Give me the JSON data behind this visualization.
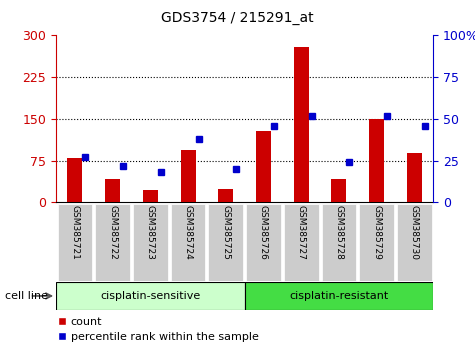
{
  "title": "GDS3754 / 215291_at",
  "samples": [
    "GSM385721",
    "GSM385722",
    "GSM385723",
    "GSM385724",
    "GSM385725",
    "GSM385726",
    "GSM385727",
    "GSM385728",
    "GSM385729",
    "GSM385730"
  ],
  "counts": [
    80,
    42,
    22,
    95,
    25,
    128,
    280,
    42,
    150,
    88
  ],
  "percentile_ranks": [
    27,
    22,
    18,
    38,
    20,
    46,
    52,
    24,
    52,
    46
  ],
  "group_labels": [
    "cisplatin-sensitive",
    "cisplatin-resistant"
  ],
  "group_sizes": [
    5,
    5
  ],
  "left_ylim": [
    0,
    300
  ],
  "right_ylim": [
    0,
    100
  ],
  "left_yticks": [
    0,
    75,
    150,
    225,
    300
  ],
  "right_yticks": [
    0,
    25,
    50,
    75,
    100
  ],
  "right_yticklabels": [
    "0",
    "25",
    "50",
    "75",
    "100%"
  ],
  "bar_color": "#cc0000",
  "dot_color": "#0000cc",
  "bg_color_sensitive": "#ccffcc",
  "bg_color_resistant": "#44dd44",
  "tick_bg": "#cccccc",
  "grid_color": "#000000",
  "legend_count_label": "count",
  "legend_pct_label": "percentile rank within the sample",
  "cell_line_label": "cell line"
}
